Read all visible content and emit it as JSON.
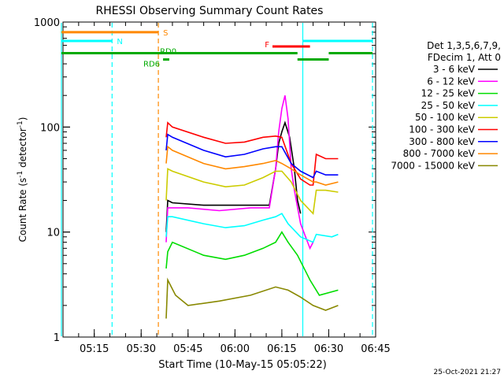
{
  "chart_data": {
    "type": "line",
    "title": "RHESSI Observing Summary Count Rates",
    "xlabel": "Start Time (10-May-15 05:05:22)",
    "ylabel_main": "Count Rate (s",
    "ylabel_sup1": "-1",
    "ylabel_mid": " detector",
    "ylabel_sup2": "-1",
    "ylabel_end": ")",
    "y_scale": "log",
    "ylim": [
      1,
      1000
    ],
    "xlim_min": [
      0,
      100
    ],
    "x_tick_min": [
      10,
      25,
      40,
      55,
      70,
      85,
      100
    ],
    "x_tick_labels": [
      "05:15",
      "05:30",
      "05:45",
      "06:00",
      "06:15",
      "06:30",
      "06:45"
    ],
    "y_tick_values": [
      1,
      10,
      100,
      1000
    ],
    "y_tick_labels": [
      "1",
      "10",
      "100",
      "1000"
    ],
    "footer": "25-Oct-2021 21:27",
    "legend": {
      "header1": "Det 1,3,5,6,7,9,",
      "header2": "FDecim 1, Att 0",
      "entries": [
        {
          "label": "3 - 6 keV",
          "color": "#000000"
        },
        {
          "label": "6 - 12 keV",
          "color": "#ff00ff"
        },
        {
          "label": "12 - 25 keV",
          "color": "#00dd00"
        },
        {
          "label": "25 - 50 keV",
          "color": "#00ffff"
        },
        {
          "label": "50 - 100 keV",
          "color": "#cccc00"
        },
        {
          "label": "100 - 300 keV",
          "color": "#ff0000"
        },
        {
          "label": "300 - 800 keV",
          "color": "#0000ff"
        },
        {
          "label": "800 - 7000 keV",
          "color": "#ff8800"
        },
        {
          "label": "7000 - 15000 keV",
          "color": "#888800"
        }
      ]
    },
    "series": [
      {
        "name": "3 - 6 keV",
        "color": "#000000",
        "x": [
          33,
          33.5,
          35,
          45,
          60,
          66,
          68,
          69,
          70,
          71,
          72.5,
          74,
          75,
          76
        ],
        "y": [
          10,
          20,
          19,
          18,
          18,
          18,
          40,
          70,
          90,
          110,
          80,
          40,
          20,
          15
        ]
      },
      {
        "name": "6 - 12 keV",
        "color": "#ff00ff",
        "x": [
          33,
          33.5,
          40,
          50,
          60,
          66,
          68,
          69,
          70,
          71,
          72,
          73,
          74,
          76,
          79,
          80
        ],
        "y": [
          8,
          17,
          17,
          16,
          17,
          17,
          40,
          90,
          150,
          200,
          120,
          40,
          25,
          12,
          7,
          8
        ]
      },
      {
        "name": "12 - 25 keV",
        "color": "#00dd00",
        "x": [
          33,
          33.5,
          35,
          45,
          52,
          58,
          64,
          68,
          70,
          72,
          75,
          78,
          79,
          82,
          88
        ],
        "y": [
          4.5,
          6.5,
          8,
          6,
          5.5,
          6,
          7,
          8,
          10,
          8,
          6,
          4,
          3.5,
          2.5,
          2.8
        ]
      },
      {
        "name": "25 - 50 keV",
        "color": "#00ffff",
        "x": [
          33,
          33.5,
          35,
          45,
          52,
          58,
          64,
          68,
          70,
          72,
          76,
          80,
          81,
          86,
          88
        ],
        "y": [
          9,
          14,
          14,
          12,
          11,
          11.5,
          13,
          14,
          15,
          12,
          9,
          8,
          9.5,
          9,
          9.5
        ]
      },
      {
        "name": "50 - 100 keV",
        "color": "#cccc00",
        "x": [
          33,
          33.5,
          35,
          45,
          52,
          58,
          64,
          68,
          70,
          73,
          76,
          80,
          81,
          84,
          88
        ],
        "y": [
          20,
          40,
          38,
          30,
          27,
          28,
          33,
          38,
          38,
          30,
          20,
          15,
          25,
          25,
          24
        ]
      },
      {
        "name": "100 - 300 keV",
        "color": "#ff0000",
        "x": [
          33,
          33.5,
          35,
          45,
          52,
          58,
          64,
          68,
          70,
          73,
          76,
          79,
          80,
          81,
          84,
          88
        ],
        "y": [
          80,
          110,
          100,
          80,
          70,
          72,
          80,
          82,
          80,
          45,
          32,
          28,
          28,
          55,
          50,
          50
        ]
      },
      {
        "name": "300 - 800 keV",
        "color": "#0000ff",
        "x": [
          33,
          33.5,
          35,
          45,
          52,
          58,
          64,
          68,
          70,
          73,
          76,
          80,
          81,
          84,
          88
        ],
        "y": [
          60,
          85,
          80,
          60,
          52,
          55,
          62,
          65,
          65,
          45,
          38,
          33,
          38,
          35,
          35
        ]
      },
      {
        "name": "800 - 7000 keV",
        "color": "#ff8800",
        "x": [
          33,
          33.5,
          35,
          45,
          52,
          58,
          64,
          68,
          70,
          73,
          76,
          80,
          81,
          84,
          88
        ],
        "y": [
          45,
          65,
          60,
          45,
          40,
          42,
          45,
          48,
          45,
          40,
          35,
          30,
          30,
          28,
          30
        ]
      },
      {
        "name": "7000 - 15000 keV",
        "color": "#888800",
        "x": [
          33,
          33.5,
          36,
          40,
          50,
          60,
          68,
          72,
          76,
          80,
          84,
          88
        ],
        "y": [
          1.5,
          3.5,
          2.5,
          2.0,
          2.2,
          2.5,
          3.0,
          2.8,
          2.4,
          2.0,
          1.8,
          2.0
        ]
      }
    ],
    "vlines": [
      {
        "x": -0.5,
        "color": "#00ffff",
        "style": "solid"
      },
      {
        "x": 15.7,
        "color": "#00ffff",
        "style": "dashed"
      },
      {
        "x": 30.5,
        "color": "#ff8800",
        "style": "dashed"
      },
      {
        "x": 76.7,
        "color": "#00ffff",
        "style": "solid"
      },
      {
        "x": 99,
        "color": "#00ffff",
        "style": "dashed"
      }
    ],
    "flag_bars": [
      {
        "label": "S",
        "color": "#ff8800",
        "x0": -0.5,
        "x1": 30.5,
        "y": 800,
        "label_side": "right"
      },
      {
        "label": "N",
        "color": "#00ffff",
        "x0": -0.5,
        "x1": 15.7,
        "y": 660,
        "label_side": "right"
      },
      {
        "label": "",
        "color": "#00ffff",
        "x0": 76.7,
        "x1": 99,
        "y": 660,
        "label_side": "none"
      },
      {
        "label": "F",
        "color": "#ff0000",
        "x0": 67,
        "x1": 79,
        "y": 585,
        "label_side": "left"
      },
      {
        "label": "RD0",
        "color": "#00aa00",
        "x0": -0.5,
        "x1": 75,
        "y": 505,
        "label_side": "mid"
      },
      {
        "label": "",
        "color": "#00aa00",
        "x0": 85,
        "x1": 99,
        "y": 505,
        "label_side": "none"
      },
      {
        "label": "RD6",
        "color": "#00aa00",
        "x0": 32,
        "x1": 34,
        "y": 440,
        "label_side": "left"
      },
      {
        "label": "",
        "color": "#00aa00",
        "x0": 75,
        "x1": 85,
        "y": 440,
        "label_side": "none"
      }
    ]
  }
}
